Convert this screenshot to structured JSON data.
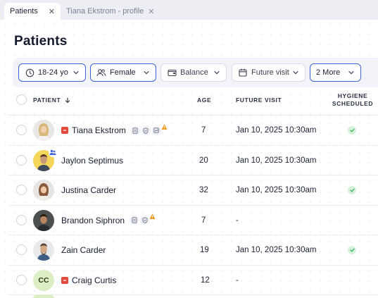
{
  "tabs": [
    {
      "label": "Patients",
      "active": true
    },
    {
      "label": "Tiana Ekstrom - profile",
      "active": false
    }
  ],
  "page": {
    "title": "Patients"
  },
  "filters": [
    {
      "label": "18-24 yo",
      "icon": "clock-icon",
      "selected": true
    },
    {
      "label": "Female",
      "icon": "users-icon",
      "selected": true
    },
    {
      "label": "Balance",
      "icon": "wallet-icon",
      "selected": false
    },
    {
      "label": "Future visit",
      "icon": "calendar-icon",
      "selected": false
    },
    {
      "label": "2 More",
      "icon": "",
      "selected": true
    }
  ],
  "table": {
    "columns": {
      "patient": "PATIENT",
      "age": "AGE",
      "future_visit": "FUTURE VISIT",
      "hygiene_line1": "HYGIENE",
      "hygiene_line2": "SCHEDULED"
    },
    "rows": [
      {
        "name": "Tiana Ekstrom",
        "age": "7",
        "future_visit": "Jan 10, 2025 10:30am",
        "hygiene": true,
        "flag": true,
        "docs": 3,
        "warning": true,
        "avatar": "photo-female-blonde",
        "family": false,
        "initials": ""
      },
      {
        "name": "Jaylon Septimus",
        "age": "20",
        "future_visit": "Jan 10, 2025 10:30am",
        "hygiene": false,
        "flag": false,
        "docs": 0,
        "warning": false,
        "avatar": "photo-male-yellow",
        "family": true,
        "initials": ""
      },
      {
        "name": "Justina Carder",
        "age": "32",
        "future_visit": "Jan 10, 2025 10:30am",
        "hygiene": true,
        "flag": false,
        "docs": 0,
        "warning": false,
        "avatar": "photo-female-brunette",
        "family": false,
        "initials": ""
      },
      {
        "name": "Brandon Siphron",
        "age": "7",
        "future_visit": "-",
        "hygiene": false,
        "flag": false,
        "docs": 2,
        "warning": true,
        "avatar": "photo-male-dark",
        "family": false,
        "initials": ""
      },
      {
        "name": "Zain Carder",
        "age": "19",
        "future_visit": "Jan 10, 2025 10:30am",
        "hygiene": true,
        "flag": false,
        "docs": 0,
        "warning": false,
        "avatar": "photo-male-beard",
        "family": false,
        "initials": ""
      },
      {
        "name": "Craig Curtis",
        "age": "12",
        "future_visit": "-",
        "hygiene": false,
        "flag": true,
        "docs": 0,
        "warning": false,
        "avatar": "initials",
        "family": false,
        "initials": "CC"
      }
    ]
  },
  "colors": {
    "accent": "#3f63d8",
    "flag": "#e24b3b",
    "warning": "#f29a1f",
    "success": "#3cb55a",
    "initials_bg": "#dcefc4"
  }
}
